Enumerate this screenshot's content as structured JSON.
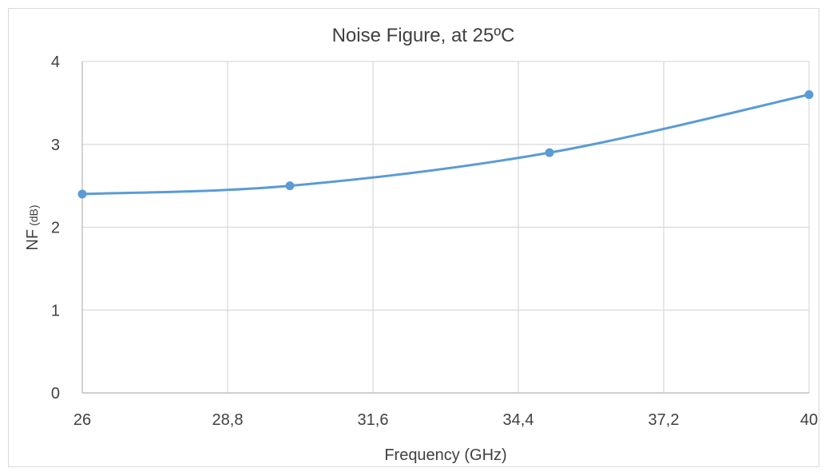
{
  "chart_data": {
    "type": "line",
    "title": "Noise Figure, at 25ºC",
    "xlabel": "Frequency (GHz)",
    "ylabel_main": "NF",
    "ylabel_unit": "(dB)",
    "x_ticks": [
      "26",
      "28,8",
      "31,6",
      "34,4",
      "37,2",
      "40"
    ],
    "x_tick_values": [
      26,
      28.8,
      31.6,
      34.4,
      37.2,
      40
    ],
    "y_ticks": [
      "0",
      "1",
      "2",
      "3",
      "4"
    ],
    "y_tick_values": [
      0,
      1,
      2,
      3,
      4
    ],
    "xlim": [
      26,
      40
    ],
    "ylim": [
      0,
      4
    ],
    "grid": true,
    "legend": "none",
    "series": [
      {
        "x": [
          26,
          30,
          35,
          40
        ],
        "y": [
          2.4,
          2.5,
          2.9,
          3.6
        ],
        "color": "#5b9bd5",
        "smooth": true
      }
    ],
    "colors": {
      "grid": "#d9d9d9",
      "axis": "#bfbfbf",
      "text": "#404040"
    }
  }
}
